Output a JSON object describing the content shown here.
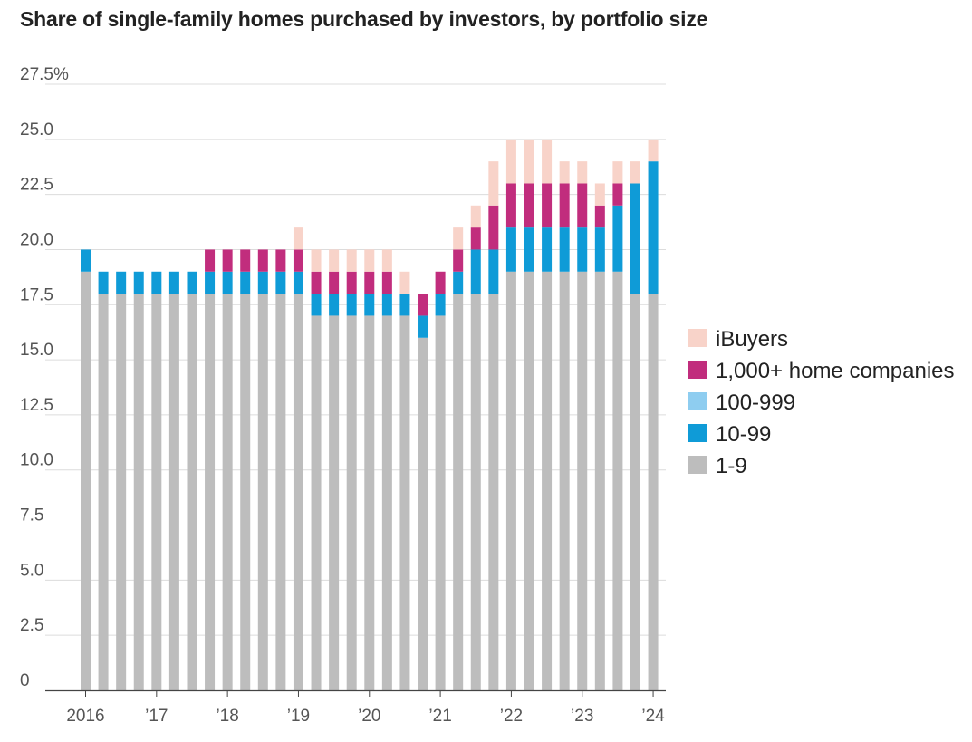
{
  "title": "Share of single-family homes purchased by investors, by portfolio size",
  "chart_data": {
    "type": "bar",
    "stacked": true,
    "title": "Share of single-family homes purchased by investors, by portfolio size",
    "xlabel": "",
    "ylabel": "",
    "ylim": [
      0,
      27.5
    ],
    "y_ticks": [
      "0",
      "2.5",
      "5.0",
      "7.5",
      "10.0",
      "12.5",
      "15.0",
      "17.5",
      "20.0",
      "22.5",
      "25.0",
      "27.5%"
    ],
    "x_ticks": [
      {
        "index": 0,
        "label": "2016"
      },
      {
        "index": 4,
        "label": "’17"
      },
      {
        "index": 8,
        "label": "’18"
      },
      {
        "index": 12,
        "label": "’19"
      },
      {
        "index": 16,
        "label": "’20"
      },
      {
        "index": 20,
        "label": "’21"
      },
      {
        "index": 24,
        "label": "’22"
      },
      {
        "index": 28,
        "label": "’23"
      },
      {
        "index": 32,
        "label": "’24"
      }
    ],
    "categories": [
      "2016 Q1",
      "2016 Q2",
      "2016 Q3",
      "2016 Q4",
      "2017 Q1",
      "2017 Q2",
      "2017 Q3",
      "2017 Q4",
      "2018 Q1",
      "2018 Q2",
      "2018 Q3",
      "2018 Q4",
      "2019 Q1",
      "2019 Q2",
      "2019 Q3",
      "2019 Q4",
      "2020 Q1",
      "2020 Q2",
      "2020 Q3",
      "2020 Q4",
      "2021 Q1",
      "2021 Q2",
      "2021 Q3",
      "2021 Q4",
      "2022 Q1",
      "2022 Q2",
      "2022 Q3",
      "2022 Q4",
      "2023 Q1",
      "2023 Q2",
      "2023 Q3",
      "2023 Q4",
      "2024 Q1"
    ],
    "series": [
      {
        "name": "1-9",
        "color": "#bdbdbd",
        "values": [
          19,
          18,
          18,
          18,
          18,
          18,
          18,
          18,
          18,
          18,
          18,
          18,
          18,
          17,
          17,
          17,
          17,
          17,
          17,
          16,
          17,
          18,
          18,
          18,
          19,
          19,
          19,
          19,
          19,
          19,
          19,
          18,
          18
        ]
      },
      {
        "name": "10-99",
        "color": "#0f9bd7",
        "values": [
          1,
          1,
          1,
          1,
          1,
          1,
          1,
          1,
          1,
          1,
          1,
          1,
          1,
          1,
          1,
          1,
          1,
          1,
          1,
          1,
          1,
          1,
          2,
          2,
          2,
          2,
          2,
          2,
          2,
          2,
          3,
          5,
          6
        ]
      },
      {
        "name": "100-999",
        "color": "#8ecdf0",
        "values": [
          0,
          0,
          0,
          0,
          0,
          0,
          0,
          0,
          0,
          0,
          0,
          0,
          0,
          0,
          0,
          0,
          0,
          0,
          0,
          0,
          0,
          0,
          0,
          0,
          0,
          0,
          0,
          0,
          0,
          0,
          0,
          0,
          0
        ]
      },
      {
        "name": "1,000+ home companies",
        "color": "#c12d7d",
        "values": [
          0,
          0,
          0,
          0,
          0,
          0,
          0,
          1,
          1,
          1,
          1,
          1,
          1,
          1,
          1,
          1,
          1,
          1,
          0,
          1,
          1,
          1,
          1,
          2,
          2,
          2,
          2,
          2,
          2,
          1,
          1,
          0,
          0
        ]
      },
      {
        "name": "iBuyers",
        "color": "#f8d3c9",
        "values": [
          0,
          0,
          0,
          0,
          0,
          0,
          0,
          0,
          0,
          0,
          0,
          0,
          1,
          1,
          1,
          1,
          1,
          1,
          1,
          0,
          0,
          1,
          1,
          2,
          2,
          2,
          2,
          1,
          1,
          1,
          1,
          1,
          1
        ]
      }
    ],
    "legend_position": "right",
    "legend_order": [
      "iBuyers",
      "1,000+ home companies",
      "100-999",
      "10-99",
      "1-9"
    ],
    "grid": true
  }
}
